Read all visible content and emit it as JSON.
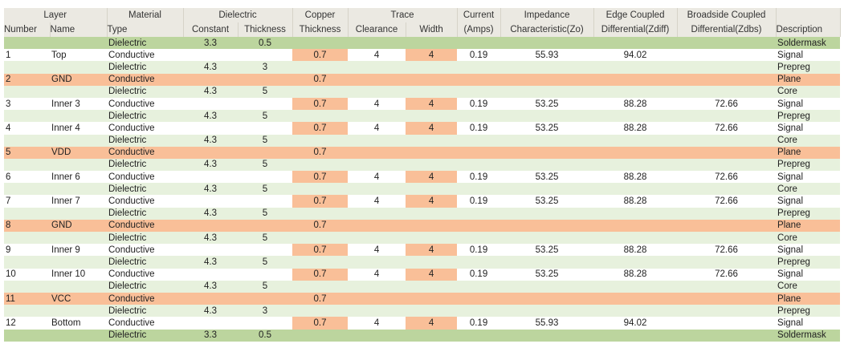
{
  "header_groups": [
    {
      "label": "Layer",
      "span": 2
    },
    {
      "label": "Material",
      "span": 1
    },
    {
      "label": "Dielectric",
      "span": 2
    },
    {
      "label": "Copper",
      "span": 1
    },
    {
      "label": "Trace",
      "span": 2
    },
    {
      "label": "Current",
      "span": 1
    },
    {
      "label": "Impedance",
      "span": 1
    },
    {
      "label": "Edge Coupled",
      "span": 1
    },
    {
      "label": "Broadside Coupled",
      "span": 1
    },
    {
      "label": "",
      "span": 1
    }
  ],
  "columns": [
    "Number",
    "Name",
    "Type",
    "Constant",
    "Thickness",
    "Thickness",
    "Clearance",
    "Width",
    "(Amps)",
    "Characteristic(Zo)",
    "Differential(Zdiff)",
    "Differential(Zdbs)",
    "Description"
  ],
  "colors": {
    "soldermask": "#bcd59e",
    "dielectric": "#e7f1dd",
    "plane": "#f9bf98",
    "highlight": "#f9bf98"
  },
  "rows": [
    {
      "kind": "mask",
      "cells": [
        "",
        "",
        "Dielectric",
        "3.3",
        "0.5",
        "",
        "",
        "",
        "",
        "",
        "",
        "",
        "Soldermask"
      ]
    },
    {
      "kind": "sig",
      "cells": [
        "1",
        "Top",
        "Conductive",
        "",
        "",
        "0.7",
        "4",
        "4",
        "0.19",
        "55.93",
        "94.02",
        "",
        "Signal"
      ]
    },
    {
      "kind": "diel",
      "cells": [
        "",
        "",
        "Dielectric",
        "4.3",
        "3",
        "",
        "",
        "",
        "",
        "",
        "",
        "",
        "Prepreg"
      ]
    },
    {
      "kind": "plane",
      "cells": [
        "2",
        "GND",
        "Conductive",
        "",
        "",
        "0.7",
        "",
        "",
        "",
        "",
        "",
        "",
        "Plane"
      ]
    },
    {
      "kind": "diel",
      "cells": [
        "",
        "",
        "Dielectric",
        "4.3",
        "5",
        "",
        "",
        "",
        "",
        "",
        "",
        "",
        "Core"
      ]
    },
    {
      "kind": "sig",
      "cells": [
        "3",
        "Inner 3",
        "Conductive",
        "",
        "",
        "0.7",
        "4",
        "4",
        "0.19",
        "53.25",
        "88.28",
        "72.66",
        "Signal"
      ]
    },
    {
      "kind": "diel",
      "cells": [
        "",
        "",
        "Dielectric",
        "4.3",
        "5",
        "",
        "",
        "",
        "",
        "",
        "",
        "",
        "Prepreg"
      ]
    },
    {
      "kind": "sig",
      "cells": [
        "4",
        "Inner 4",
        "Conductive",
        "",
        "",
        "0.7",
        "4",
        "4",
        "0.19",
        "53.25",
        "88.28",
        "72.66",
        "Signal"
      ]
    },
    {
      "kind": "diel",
      "cells": [
        "",
        "",
        "Dielectric",
        "4.3",
        "5",
        "",
        "",
        "",
        "",
        "",
        "",
        "",
        "Core"
      ]
    },
    {
      "kind": "plane",
      "cells": [
        "5",
        "VDD",
        "Conductive",
        "",
        "",
        "0.7",
        "",
        "",
        "",
        "",
        "",
        "",
        "Plane"
      ]
    },
    {
      "kind": "diel",
      "cells": [
        "",
        "",
        "Dielectric",
        "4.3",
        "5",
        "",
        "",
        "",
        "",
        "",
        "",
        "",
        "Prepreg"
      ]
    },
    {
      "kind": "sig",
      "cells": [
        "6",
        "Inner 6",
        "Conductive",
        "",
        "",
        "0.7",
        "4",
        "4",
        "0.19",
        "53.25",
        "88.28",
        "72.66",
        "Signal"
      ]
    },
    {
      "kind": "diel",
      "cells": [
        "",
        "",
        "Dielectric",
        "4.3",
        "5",
        "",
        "",
        "",
        "",
        "",
        "",
        "",
        "Core"
      ]
    },
    {
      "kind": "sig",
      "cells": [
        "7",
        "Inner 7",
        "Conductive",
        "",
        "",
        "0.7",
        "4",
        "4",
        "0.19",
        "53.25",
        "88.28",
        "72.66",
        "Signal"
      ]
    },
    {
      "kind": "diel",
      "cells": [
        "",
        "",
        "Dielectric",
        "4.3",
        "5",
        "",
        "",
        "",
        "",
        "",
        "",
        "",
        "Prepreg"
      ]
    },
    {
      "kind": "plane",
      "cells": [
        "8",
        "GND",
        "Conductive",
        "",
        "",
        "0.7",
        "",
        "",
        "",
        "",
        "",
        "",
        "Plane"
      ]
    },
    {
      "kind": "diel",
      "cells": [
        "",
        "",
        "Dielectric",
        "4.3",
        "5",
        "",
        "",
        "",
        "",
        "",
        "",
        "",
        "Core"
      ]
    },
    {
      "kind": "sig",
      "cells": [
        "9",
        "Inner 9",
        "Conductive",
        "",
        "",
        "0.7",
        "4",
        "4",
        "0.19",
        "53.25",
        "88.28",
        "72.66",
        "Signal"
      ]
    },
    {
      "kind": "diel",
      "cells": [
        "",
        "",
        "Dielectric",
        "4.3",
        "5",
        "",
        "",
        "",
        "",
        "",
        "",
        "",
        "Prepreg"
      ]
    },
    {
      "kind": "sig",
      "cells": [
        "10",
        "Inner 10",
        "Conductive",
        "",
        "",
        "0.7",
        "4",
        "4",
        "0.19",
        "53.25",
        "88.28",
        "72.66",
        "Signal"
      ]
    },
    {
      "kind": "diel",
      "cells": [
        "",
        "",
        "Dielectric",
        "4.3",
        "5",
        "",
        "",
        "",
        "",
        "",
        "",
        "",
        "Core"
      ]
    },
    {
      "kind": "plane",
      "cells": [
        "11",
        "VCC",
        "Conductive",
        "",
        "",
        "0.7",
        "",
        "",
        "",
        "",
        "",
        "",
        "Plane"
      ]
    },
    {
      "kind": "diel",
      "cells": [
        "",
        "",
        "Dielectric",
        "4.3",
        "3",
        "",
        "",
        "",
        "",
        "",
        "",
        "",
        "Prepreg"
      ]
    },
    {
      "kind": "sig",
      "cells": [
        "12",
        "Bottom",
        "Conductive",
        "",
        "",
        "0.7",
        "4",
        "4",
        "0.19",
        "55.93",
        "94.02",
        "",
        "Signal"
      ]
    },
    {
      "kind": "mask",
      "cells": [
        "",
        "",
        "Dielectric",
        "3.3",
        "0.5",
        "",
        "",
        "",
        "",
        "",
        "",
        "",
        "Soldermask"
      ]
    }
  ]
}
